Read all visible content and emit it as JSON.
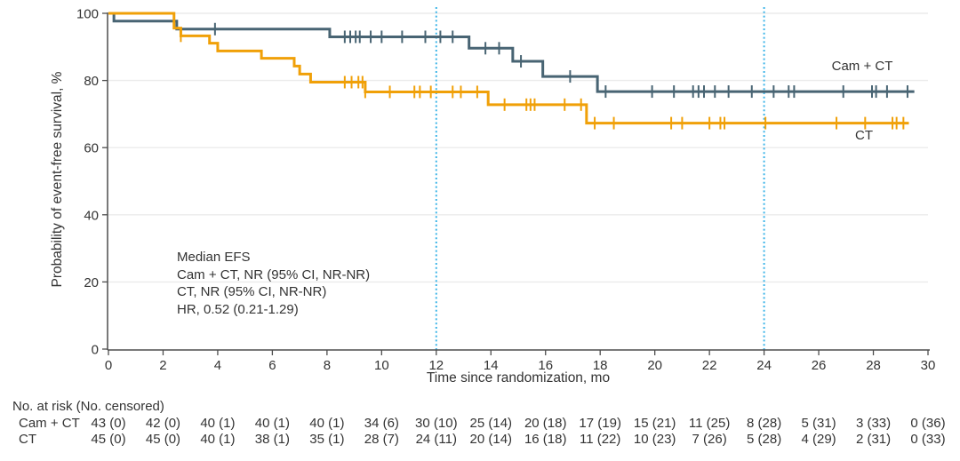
{
  "annotation": {
    "lines": [
      "Median EFS",
      "Cam + CT, NR (95% CI, NR-NR)",
      "CT, NR (95% CI, NR-NR)",
      "HR, 0.52 (0.21-1.29)"
    ]
  },
  "risk_table": {
    "header": "No. at risk (No. censored)",
    "months": [
      0,
      2,
      4,
      6,
      8,
      10,
      12,
      14,
      16,
      18,
      20,
      22,
      24,
      26,
      28,
      30
    ],
    "rows": [
      {
        "label": "Cam + CT",
        "values": [
          "43 (0)",
          "42 (0)",
          "40 (1)",
          "40 (1)",
          "40 (1)",
          "34 (6)",
          "30 (10)",
          "25 (14)",
          "20 (18)",
          "17 (19)",
          "15 (21)",
          "11 (25)",
          "8 (28)",
          "5 (31)",
          "3 (33)",
          "0 (36)"
        ]
      },
      {
        "label": "CT",
        "values": [
          "45 (0)",
          "45 (0)",
          "40 (1)",
          "38 (1)",
          "35 (1)",
          "28 (7)",
          "24 (11)",
          "20 (14)",
          "16 (18)",
          "11 (22)",
          "10 (23)",
          "7 (26)",
          "5 (28)",
          "4 (29)",
          "2 (31)",
          "0 (33)"
        ]
      }
    ]
  },
  "chart_data": {
    "type": "line",
    "variant": "kaplan-meier-step",
    "title": "",
    "xlabel": "Time since randomization, mo",
    "ylabel": "Probability of event-free survival, %",
    "xlim": [
      0,
      30
    ],
    "ylim": [
      0,
      100
    ],
    "x_ticks": [
      0,
      2,
      4,
      6,
      8,
      10,
      12,
      14,
      16,
      18,
      20,
      22,
      24,
      26,
      28,
      30
    ],
    "y_ticks": [
      0,
      20,
      40,
      60,
      80,
      100
    ],
    "grid": "horizontal",
    "legend_position": "end-of-curve",
    "reference_lines_x": [
      12,
      24
    ],
    "series": [
      {
        "name": "Cam + CT",
        "color": "#486473",
        "end_time": 29.5,
        "steps": [
          [
            0,
            100
          ],
          [
            0.2,
            97.7
          ],
          [
            2.5,
            95.3
          ],
          [
            8.1,
            93.0
          ],
          [
            13.2,
            89.6
          ],
          [
            14.8,
            85.7
          ],
          [
            15.9,
            81.2
          ],
          [
            17.9,
            76.7
          ]
        ],
        "censor_times": [
          3.9,
          8.65,
          8.85,
          9.05,
          9.2,
          9.6,
          10.0,
          10.75,
          11.6,
          12.15,
          12.6,
          13.8,
          14.3,
          15.1,
          16.9,
          18.2,
          19.9,
          20.7,
          21.4,
          21.6,
          21.8,
          22.2,
          22.7,
          23.55,
          24.35,
          24.9,
          25.1,
          26.9,
          27.95,
          28.1,
          28.5,
          29.25
        ]
      },
      {
        "name": "CT",
        "color": "#f0a008",
        "end_time": 29.3,
        "steps": [
          [
            0,
            100
          ],
          [
            2.4,
            95.6
          ],
          [
            2.65,
            93.3
          ],
          [
            3.7,
            91.1
          ],
          [
            4.0,
            88.8
          ],
          [
            5.6,
            86.6
          ],
          [
            6.8,
            84.3
          ],
          [
            7.0,
            81.9
          ],
          [
            7.4,
            79.5
          ],
          [
            9.4,
            76.6
          ],
          [
            13.9,
            72.8
          ],
          [
            17.5,
            67.3
          ]
        ],
        "censor_times": [
          2.65,
          8.65,
          8.9,
          9.15,
          9.3,
          9.4,
          10.3,
          11.2,
          11.4,
          11.8,
          12.6,
          12.9,
          13.5,
          14.5,
          15.3,
          15.45,
          15.6,
          16.7,
          17.3,
          17.8,
          18.5,
          20.6,
          21.0,
          22.0,
          22.4,
          22.55,
          24.05,
          26.65,
          27.7,
          28.7,
          28.85,
          29.1
        ]
      }
    ]
  },
  "colors": {
    "axis": "#4d4d4d",
    "grid": "#ebebeb",
    "reference_line": "#3db5e8",
    "text": "#333333",
    "background": "#ffffff"
  }
}
